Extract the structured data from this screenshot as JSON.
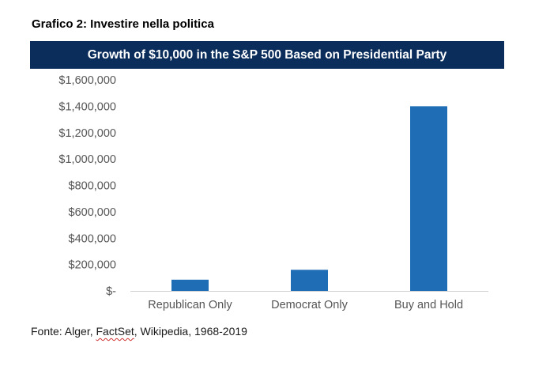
{
  "document": {
    "caption": "Grafico 2: Investire nella politica"
  },
  "colors": {
    "banner_bg": "#0b2d5c",
    "bar": "#1f6db5",
    "axis_line": "#d0d0d0",
    "tick_text": "#555555"
  },
  "chart_data": {
    "type": "bar",
    "title": "Growth of $10,000 in the S&P 500 Based on Presidential Party",
    "xlabel": "",
    "ylabel": "",
    "categories": [
      "Republican Only",
      "Democrat Only",
      "Buy and Hold"
    ],
    "values": [
      85000,
      160000,
      1400000
    ],
    "ylim": [
      0,
      1600000
    ],
    "yticks": [
      0,
      200000,
      400000,
      600000,
      800000,
      1000000,
      1200000,
      1400000,
      1600000
    ],
    "ytick_labels": [
      "$-",
      "$200,000",
      "$400,000",
      "$600,000",
      "$800,000",
      "$1,000,000",
      "$1,200,000",
      "$1,400,000",
      "$1,600,000"
    ],
    "grid": false,
    "legend": "none"
  },
  "source": {
    "prefix": "Fonte: Alger, ",
    "flagged_word": "FactSet",
    "suffix": ", Wikipedia, 1968-2019"
  }
}
